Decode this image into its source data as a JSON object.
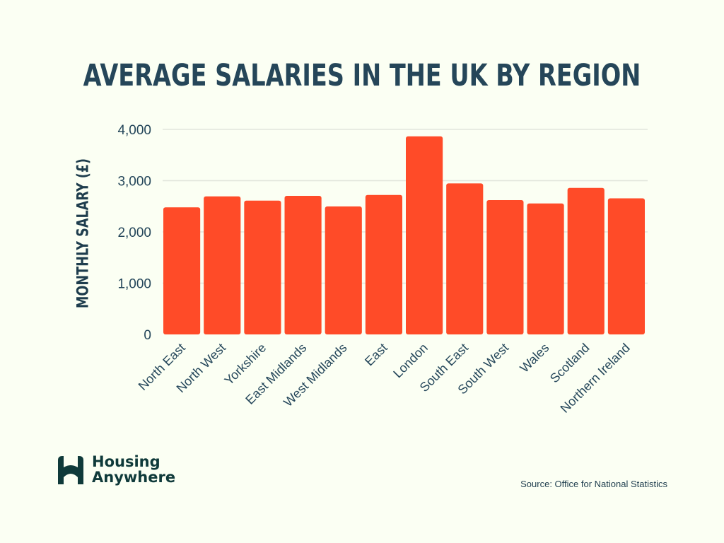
{
  "chart_data": {
    "type": "bar",
    "title": "AVERAGE SALARIES IN THE UK BY REGION",
    "ylabel": "MONTHLY  SALARY (£)",
    "xlabel": "",
    "categories": [
      "North East",
      "North West",
      "Yorkshire",
      "East Midlands",
      "West Midlands",
      "East",
      "London",
      "South East",
      "South West",
      "Wales",
      "Scotland",
      "Northern Ireland"
    ],
    "values": [
      2480,
      2693,
      2610,
      2703,
      2496,
      2721,
      3863,
      2946,
      2620,
      2555,
      2859,
      2656
    ],
    "ylim": [
      0,
      4000
    ],
    "yticks": [
      "0",
      "1,000",
      "2,000",
      "3,000",
      "4,000"
    ],
    "grid": true,
    "bar_color": "#ff4b28"
  },
  "logo": {
    "line1": "Housing",
    "line2": "Anywhere"
  },
  "source": "Source: Office for National Statistics"
}
